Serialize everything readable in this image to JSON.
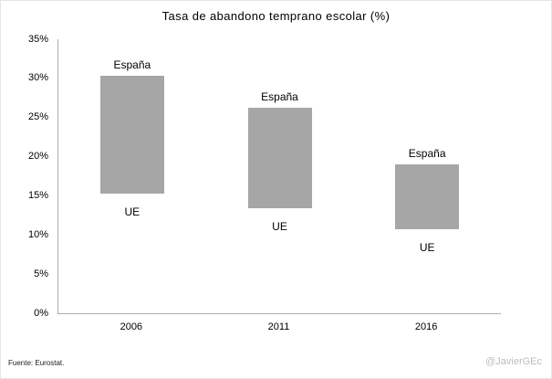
{
  "title": "Tasa de abandono temprano escolar (%)",
  "footer": {
    "source": "Fuente:  Eurostat.",
    "credit": "@JavierGEc"
  },
  "colors": {
    "bar": "#a6a6a6",
    "axis": "#adadad",
    "credit_text": "#bcbcbc"
  },
  "chart_data": {
    "type": "bar",
    "subtype": "floating_range_bars",
    "title": "Tasa de abandono temprano escolar (%)",
    "categories": [
      "2006",
      "2011",
      "2016"
    ],
    "series": [
      {
        "name": "UE",
        "values": [
          15.3,
          13.4,
          10.7
        ]
      },
      {
        "name": "España",
        "values": [
          30.3,
          26.3,
          19.0
        ]
      }
    ],
    "bar_note": "Each gray bar spans from the UE value (bottom edge) to the España value (top edge); 'España' labeled above each bar, 'UE' below",
    "xlabel": "",
    "ylabel": "",
    "ylim": [
      0,
      35
    ],
    "ytick_values": [
      0,
      5,
      10,
      15,
      20,
      25,
      30,
      35
    ],
    "ytick_labels": [
      "0%",
      "5%",
      "10%",
      "15%",
      "20%",
      "25%",
      "30%",
      "35%"
    ],
    "grid": false,
    "legend_position": "none",
    "bar_color": "#a6a6a6"
  }
}
